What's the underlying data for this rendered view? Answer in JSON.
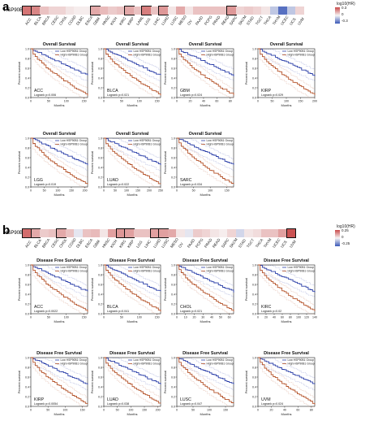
{
  "figure": {
    "panels": [
      {
        "letter": "a",
        "gene": "HSP90B1",
        "plot_title": "Overall Survival",
        "heatmap": {
          "cancers": [
            "ACC",
            "BLCA",
            "BRCA",
            "CESC",
            "CHOL",
            "COAD",
            "DLBC",
            "ESCA",
            "GBM",
            "HNSC",
            "KICH",
            "KIRC",
            "KIRP",
            "LAML",
            "LGG",
            "LIHC",
            "LUAD",
            "LUSC",
            "MESO",
            "OV",
            "PAAD",
            "PCPG",
            "PRAD",
            "READ",
            "SARC",
            "SKCM",
            "STAD",
            "TGCT",
            "THCA",
            "THYM",
            "UCEC",
            "UCS",
            "UVM"
          ],
          "values": [
            0.75,
            0.65,
            0.3,
            0.2,
            0.2,
            0.1,
            0.05,
            0.05,
            0.45,
            0.35,
            0.25,
            0.3,
            0.45,
            0.3,
            0.7,
            0.3,
            0.55,
            0.1,
            0.45,
            0.1,
            0.3,
            0.3,
            0.3,
            0.3,
            0.55,
            0.2,
            0.25,
            0.2,
            0.1,
            -0.3,
            -0.85,
            -0.3,
            0.2
          ],
          "significant": [
            "ACC",
            "BLCA",
            "GBM",
            "KIRP",
            "LGG",
            "LUAD",
            "SARC"
          ],
          "legend_title": "log10(HR)",
          "legend_ticks": [
            "0.3",
            "0",
            "-0.3"
          ]
        },
        "plots": [
          {
            "cancer": "ACC",
            "pval": "Logrank p=0.006",
            "xticks": [
              "0",
              "50",
              "100",
              "150"
            ],
            "xmax": 160
          },
          {
            "cancer": "BLCA",
            "pval": "Logrank p=0.021",
            "xticks": [
              "0",
              "50",
              "100",
              "150"
            ],
            "xmax": 160
          },
          {
            "cancer": "GBM",
            "pval": "Logrank p=0.024",
            "xticks": [
              "0",
              "20",
              "40",
              "60",
              "80"
            ],
            "xmax": 85
          },
          {
            "cancer": "KIRP",
            "pval": "Logrank p=0.029",
            "xticks": [
              "0",
              "50",
              "100",
              "150",
              "200"
            ],
            "xmax": 200
          },
          {
            "cancer": "LGG",
            "pval": "Logrank p=0.019",
            "xticks": [
              "0",
              "50",
              "100",
              "150",
              "200"
            ],
            "xmax": 210
          },
          {
            "cancer": "LUAD",
            "pval": "Logrank p=0.022",
            "xticks": [
              "0",
              "50",
              "100",
              "150",
              "200",
              "250"
            ],
            "xmax": 250
          },
          {
            "cancer": "SARC",
            "pval": "Logrank p=0.034",
            "xticks": [
              "0",
              "50",
              "100",
              "150"
            ],
            "xmax": 170
          }
        ]
      },
      {
        "letter": "b",
        "gene": "HSP90B1",
        "plot_title": "Disease Free Survival",
        "heatmap": {
          "cancers": [
            "ACC",
            "BLCA",
            "BRCA",
            "CESC",
            "CHOL",
            "COAD",
            "DLBC",
            "ESCA",
            "GBM",
            "HNSC",
            "KICH",
            "KIRC",
            "KIRP",
            "LGG",
            "LIHC",
            "LUAD",
            "LUSC",
            "MESO",
            "OV",
            "PAAD",
            "PCPG",
            "PRAD",
            "READ",
            "SARC",
            "SKCM",
            "STAD",
            "TGCT",
            "THCA",
            "THYM",
            "UCEC",
            "UCS",
            "UVM"
          ],
          "values": [
            0.8,
            0.45,
            0.25,
            0.3,
            0.45,
            0.3,
            -0.1,
            0.3,
            0.35,
            0.1,
            0.5,
            0.55,
            0.5,
            0.3,
            0.3,
            0.5,
            0.5,
            0.45,
            0.1,
            -0.1,
            0.25,
            0.2,
            0.1,
            0.05,
            0.2,
            -0.2,
            0.1,
            0.15,
            0.3,
            0.3,
            0.5,
            0.95
          ],
          "significant": [
            "ACC",
            "BLCA",
            "CHOL",
            "KIRC",
            "KIRP",
            "LUAD",
            "LUSC",
            "UVM"
          ],
          "legend_title": "log10(HR)",
          "legend_ticks": [
            "0.25",
            "0",
            "-0.25"
          ]
        },
        "plots": [
          {
            "cancer": "ACC",
            "pval": "Logrank p=0.0022",
            "xticks": [
              "0",
              "50",
              "100",
              "150"
            ],
            "xmax": 160
          },
          {
            "cancer": "BLCA",
            "pval": "Logrank p=0.041",
            "xticks": [
              "0",
              "50",
              "100",
              "150"
            ],
            "xmax": 160
          },
          {
            "cancer": "CHOL",
            "pval": "Logrank p=0.021",
            "xticks": [
              "0",
              "10",
              "20",
              "30",
              "40",
              "50",
              "60"
            ],
            "xmax": 65
          },
          {
            "cancer": "KIRC",
            "pval": "Logrank p=0.02",
            "xticks": [
              "0",
              "20",
              "40",
              "60",
              "80",
              "100",
              "120",
              "140"
            ],
            "xmax": 140
          },
          {
            "cancer": "KIRP",
            "pval": "Logrank p=0.0054",
            "xticks": [
              "0",
              "50",
              "100",
              "150"
            ],
            "xmax": 165
          },
          {
            "cancer": "LUAD",
            "pval": "Logrank p=0.038",
            "xticks": [
              "0",
              "50",
              "100",
              "150",
              "200"
            ],
            "xmax": 210
          },
          {
            "cancer": "LUSC",
            "pval": "Logrank p=0.047",
            "xticks": [
              "0",
              "50",
              "100",
              "150"
            ],
            "xmax": 175
          },
          {
            "cancer": "UVM",
            "pval": "Logrank p=0.024",
            "xticks": [
              "0",
              "20",
              "40",
              "60",
              "80"
            ],
            "xmax": 85
          }
        ]
      }
    ],
    "legend_low": "Low HSP90B1 Group",
    "legend_high": "High HSP90B1 Group",
    "xlabel": "Months",
    "ylabel": "Percent survival",
    "yticks": [
      "0.0",
      "0.2",
      "0.4",
      "0.6",
      "0.8",
      "1.0"
    ],
    "colors": {
      "low": "#2a3ea8",
      "high": "#b5532a",
      "pos": "#c94a4a",
      "neg": "#3a58b8"
    }
  }
}
